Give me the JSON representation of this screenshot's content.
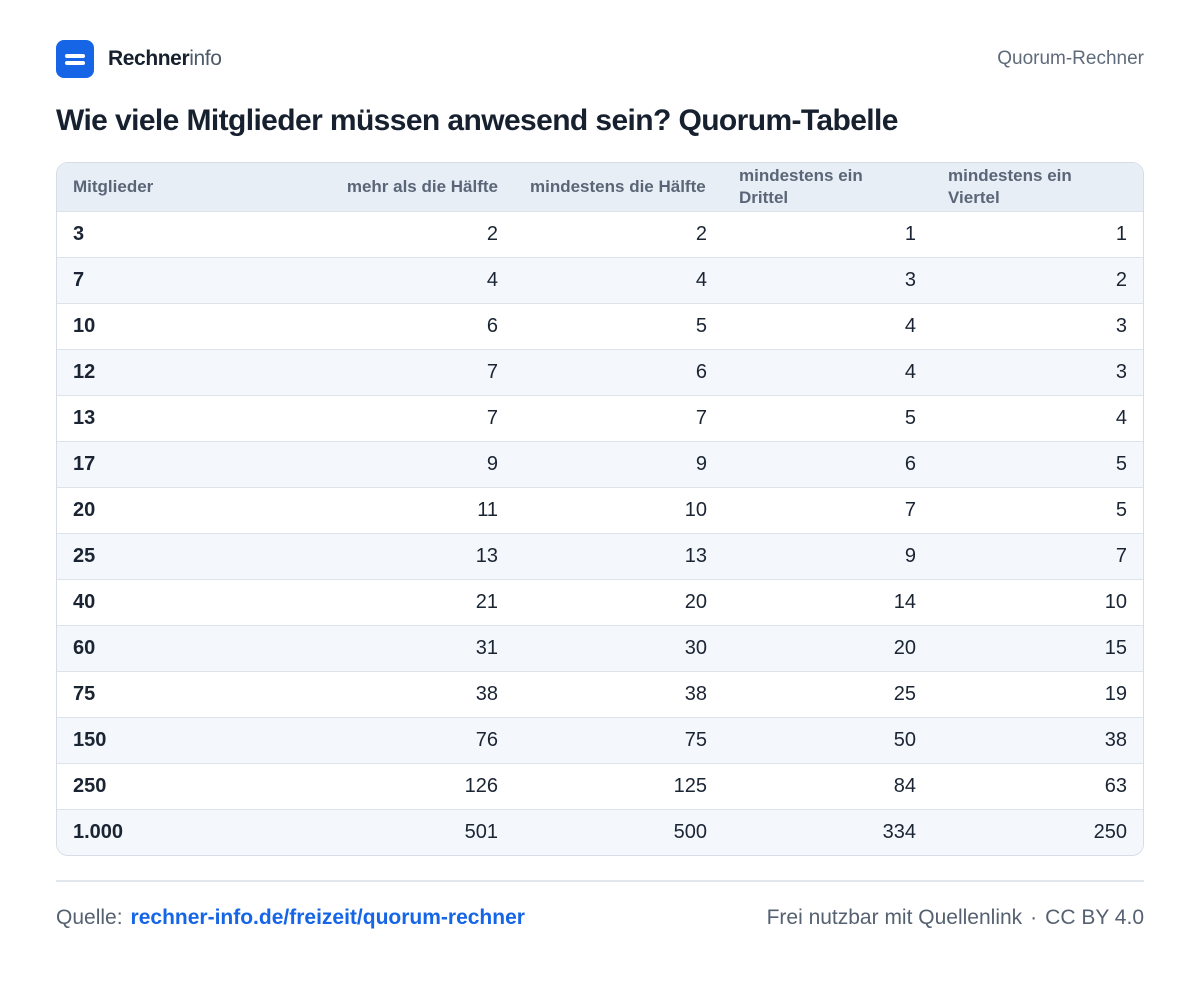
{
  "brand": {
    "name_bold": "Rechner",
    "name_light": "info",
    "logo_icon": "menu-lines-icon",
    "accent": "#1565e6"
  },
  "header": {
    "right_label": "Quorum-Rechner"
  },
  "title": "Wie viele Mitglieder müssen anwesend sein? Quorum-Tabelle",
  "table": {
    "headers": [
      "Mitglieder",
      "mehr als die Hälfte",
      "mindestens die Hälfte",
      "mindestens ein Drittel",
      "mindestens ein Viertel"
    ],
    "rows": [
      [
        "3",
        "2",
        "2",
        "1",
        "1"
      ],
      [
        "7",
        "4",
        "4",
        "3",
        "2"
      ],
      [
        "10",
        "6",
        "5",
        "4",
        "3"
      ],
      [
        "12",
        "7",
        "6",
        "4",
        "3"
      ],
      [
        "13",
        "7",
        "7",
        "5",
        "4"
      ],
      [
        "17",
        "9",
        "9",
        "6",
        "5"
      ],
      [
        "20",
        "11",
        "10",
        "7",
        "5"
      ],
      [
        "25",
        "13",
        "13",
        "9",
        "7"
      ],
      [
        "40",
        "21",
        "20",
        "14",
        "10"
      ],
      [
        "60",
        "31",
        "30",
        "20",
        "15"
      ],
      [
        "75",
        "38",
        "38",
        "25",
        "19"
      ],
      [
        "150",
        "76",
        "75",
        "50",
        "38"
      ],
      [
        "250",
        "126",
        "125",
        "84",
        "63"
      ],
      [
        "1.000",
        "501",
        "500",
        "334",
        "250"
      ]
    ]
  },
  "footer": {
    "source_label": "Quelle:",
    "source_link": "rechner-info.de/freizeit/quorum-rechner",
    "license_text": "Frei nutzbar mit Quellenlink",
    "separator": "·",
    "license": "CC BY 4.0"
  }
}
